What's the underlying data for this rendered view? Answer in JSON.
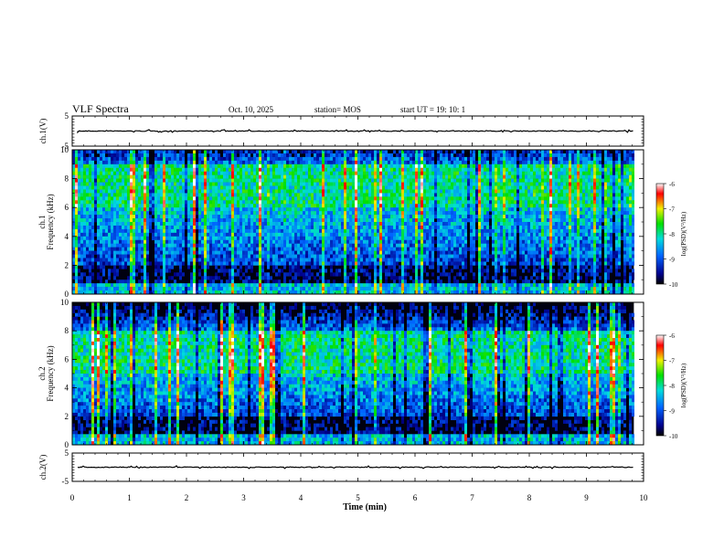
{
  "header": {
    "title": "VLF Spectra",
    "date": "Oct. 10, 2025",
    "station": "station= MOS",
    "start": "start  UT =   19: 10: 1"
  },
  "chart_data": [
    {
      "type": "line",
      "panel": "ch1-waveform",
      "ylabel": "ch.1(V)",
      "ylim": [
        -5,
        5
      ],
      "yticks": [
        "5",
        "-5"
      ],
      "xlim": [
        0,
        10
      ],
      "series": [
        {
          "values_baseline": 0
        }
      ]
    },
    {
      "type": "heatmap",
      "panel": "ch1-spectrogram",
      "ylabel": "ch.1 Frequency (kHz)",
      "ylim": [
        0,
        10
      ],
      "yticks": [
        "0",
        "2",
        "4",
        "6",
        "8",
        "10"
      ],
      "xlim": [
        0,
        10
      ],
      "colorbar": {
        "label": "log(PSD)(V²/Hz)",
        "ticks": [
          "-6",
          "-7",
          "-8",
          "-9",
          "-10"
        ],
        "range": [
          -10,
          -6
        ]
      },
      "dominant_band_khz": [
        6,
        9
      ]
    },
    {
      "type": "heatmap",
      "panel": "ch2-spectrogram",
      "ylabel": "ch.2 Frequency (kHz)",
      "ylim": [
        0,
        10
      ],
      "yticks": [
        "0",
        "2",
        "4",
        "6",
        "8",
        "10"
      ],
      "xlim": [
        0,
        10
      ],
      "colorbar": {
        "label": "log(PSD)(V²/Hz)",
        "ticks": [
          "-6",
          "-7",
          "-8",
          "-9",
          "-10"
        ],
        "range": [
          -10,
          -6
        ]
      },
      "dominant_band_khz": [
        5,
        8
      ]
    },
    {
      "type": "line",
      "panel": "ch2-waveform",
      "ylabel": "ch.2(V)",
      "ylim": [
        -5,
        5
      ],
      "yticks": [
        "5",
        "-5"
      ],
      "xlim": [
        0,
        10
      ],
      "series": [
        {
          "values_baseline": 0
        }
      ]
    }
  ],
  "xaxis": {
    "label": "Time  (min)",
    "ticks": [
      "0",
      "1",
      "2",
      "3",
      "4",
      "5",
      "6",
      "7",
      "8",
      "9",
      "10"
    ],
    "data_end": 9.83
  },
  "colors": {
    "low": "#000040",
    "mid": "#00c8c8",
    "high": "#ff0000",
    "waveform": "#000000"
  }
}
